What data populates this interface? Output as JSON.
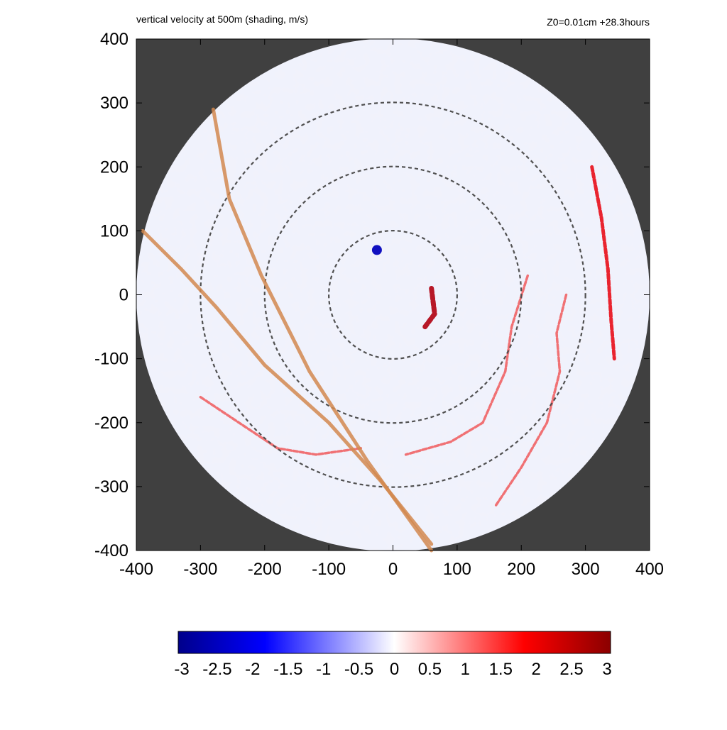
{
  "header": {
    "title": "vertical velocity at 500m (shading, m/s)",
    "info": "Z0=0.01cm  +28.3hours"
  },
  "chart_data": {
    "type": "heatmap",
    "title": "vertical velocity at 500m (shading, m/s)",
    "annotation": "Z0=0.01cm  +28.3hours",
    "xlabel": "",
    "ylabel": "",
    "xlim": [
      -400,
      400
    ],
    "ylim": [
      -400,
      400
    ],
    "x_ticks": [
      "-400",
      "-300",
      "-200",
      "-100",
      "0",
      "100",
      "200",
      "300",
      "400"
    ],
    "y_ticks": [
      "400",
      "300",
      "200",
      "100",
      "0",
      "-100",
      "-200",
      "-300",
      "-400"
    ],
    "domain_radius": 400,
    "background_color": "#404040",
    "range_rings": [
      {
        "radius": 100
      },
      {
        "radius": 200
      },
      {
        "radius": 300
      }
    ],
    "tracks": [
      {
        "color": "#d2884f",
        "points": [
          [
            -280,
            290
          ],
          [
            -255,
            150
          ],
          [
            -205,
            30
          ],
          [
            -130,
            -120
          ],
          [
            -40,
            -260
          ],
          [
            60,
            -400
          ]
        ]
      },
      {
        "color": "#d2884f",
        "points": [
          [
            -390,
            100
          ],
          [
            -330,
            40
          ],
          [
            -275,
            -20
          ],
          [
            -200,
            -110
          ],
          [
            -100,
            -200
          ],
          [
            -20,
            -290
          ],
          [
            60,
            -390
          ]
        ]
      }
    ],
    "features": [
      {
        "type": "strong_updraft_band",
        "points": [
          [
            310,
            200
          ],
          [
            325,
            120
          ],
          [
            335,
            40
          ],
          [
            340,
            -40
          ],
          [
            345,
            -100
          ]
        ]
      },
      {
        "type": "updraft_band",
        "points": [
          [
            210,
            30
          ],
          [
            185,
            -50
          ],
          [
            175,
            -120
          ],
          [
            140,
            -200
          ],
          [
            90,
            -230
          ],
          [
            20,
            -250
          ]
        ]
      },
      {
        "type": "updraft_band",
        "points": [
          [
            270,
            0
          ],
          [
            255,
            -60
          ],
          [
            260,
            -120
          ],
          [
            240,
            -200
          ],
          [
            200,
            -270
          ],
          [
            160,
            -330
          ]
        ]
      },
      {
        "type": "updraft_band",
        "points": [
          [
            -300,
            -160
          ],
          [
            -240,
            -200
          ],
          [
            -180,
            -240
          ],
          [
            -120,
            -250
          ],
          [
            -50,
            -240
          ]
        ]
      },
      {
        "type": "eyewall_core",
        "points": [
          [
            60,
            10
          ],
          [
            65,
            -30
          ],
          [
            50,
            -50
          ]
        ]
      },
      {
        "type": "downdraft_core",
        "points": [
          [
            -25,
            70
          ]
        ]
      }
    ],
    "colorbar": {
      "min": -3,
      "max": 3,
      "ticks": [
        "-3",
        "-2.5",
        "-2",
        "-1.5",
        "-1",
        "-0.5",
        "0",
        "0.5",
        "1",
        "1.5",
        "2",
        "2.5",
        "3"
      ],
      "colors": [
        "#00008b",
        "#0000ff",
        "#ffffff",
        "#ff0000",
        "#8b0000"
      ]
    }
  }
}
